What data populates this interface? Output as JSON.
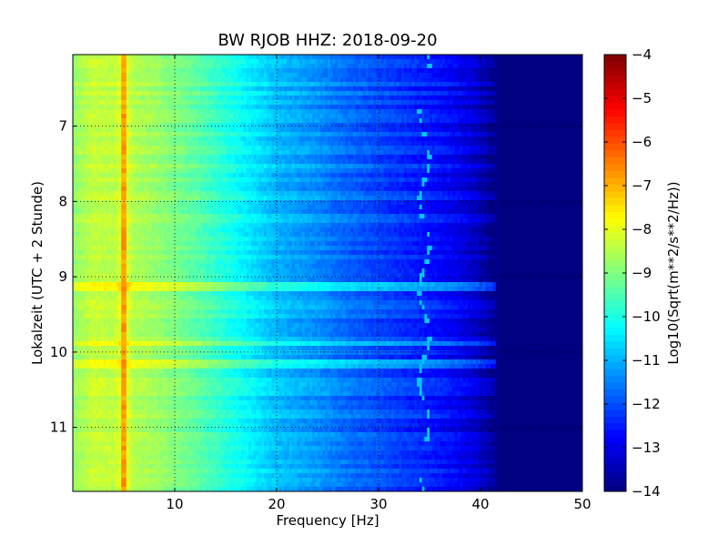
{
  "chart_data": {
    "type": "heatmap",
    "title": "BW RJOB HHZ: 2018-09-20",
    "xlabel": "Frequency [Hz]",
    "ylabel": "Lokalzeit (UTC + 2 Stunde)",
    "xlim": [
      0,
      50
    ],
    "ylim": [
      6.05,
      11.85
    ],
    "y_inverted": true,
    "x_ticks": [
      10,
      20,
      30,
      40,
      50
    ],
    "y_ticks": [
      7,
      8,
      9,
      10,
      11
    ],
    "grid": true,
    "colormap": "jet",
    "colorbar": {
      "label": "Log10(Sqrt(m**2/s**2/Hz))",
      "range": [
        -14,
        -4
      ],
      "ticks": [
        -14,
        -13,
        -12,
        -11,
        -10,
        -9,
        -8,
        -7,
        -6,
        -5,
        -4
      ]
    },
    "spectrum_profile": {
      "frequency_hz": [
        0,
        2,
        4,
        5,
        6,
        8,
        10,
        12,
        14,
        16,
        18,
        20,
        22,
        24,
        26,
        28,
        30,
        32,
        34,
        36,
        38,
        40,
        41,
        42,
        50
      ],
      "log10_amplitude": [
        -8.8,
        -8.3,
        -8.4,
        -7.9,
        -8.5,
        -8.7,
        -9.0,
        -9.3,
        -9.7,
        -10.1,
        -10.5,
        -10.9,
        -11.1,
        -11.3,
        -11.6,
        -11.8,
        -12.0,
        -12.2,
        -12.4,
        -12.6,
        -12.9,
        -13.3,
        -13.7,
        -14.0,
        -14.0
      ]
    },
    "features": [
      {
        "frequency_hz": 5,
        "level": -6.8,
        "description": "persistent narrow line"
      },
      {
        "frequency_hz": 34.5,
        "level": -10.8,
        "description": "drifting narrow line"
      },
      {
        "time": 9.88,
        "level": -9.5,
        "description": "broadband horizontal stripe"
      },
      {
        "time": 9.12,
        "level": -10.0,
        "description": "broadband horizontal stripe"
      },
      {
        "time": 10.15,
        "level": -10.3,
        "description": "broadband horizontal stripe"
      }
    ]
  }
}
